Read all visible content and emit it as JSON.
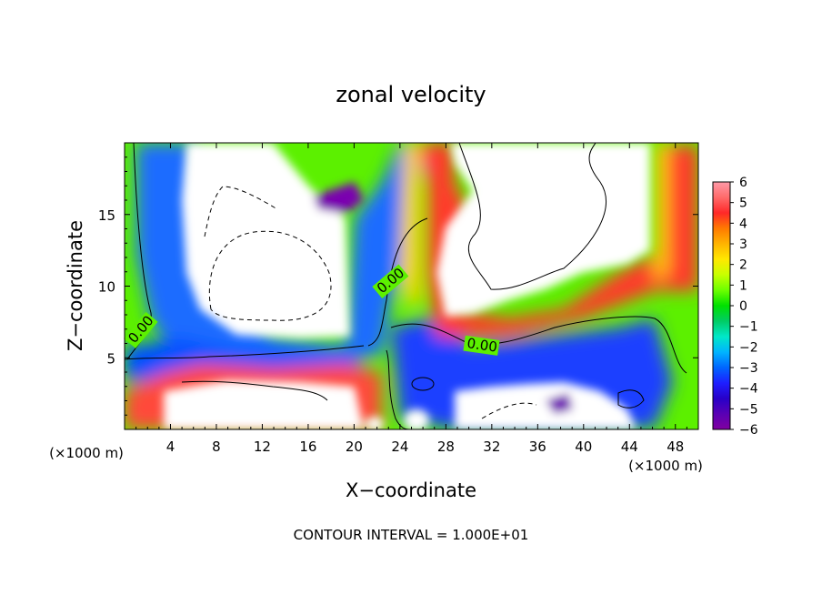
{
  "chart_data": {
    "type": "heatmap",
    "title": "zonal velocity",
    "xlabel": "X−coordinate",
    "ylabel": "Z−coordinate",
    "x_unit": "(×1000 m)",
    "y_unit": "(×1000 m)",
    "footer": "CONTOUR INTERVAL = 1.000E+01",
    "xlim": [
      0,
      50
    ],
    "ylim": [
      0,
      20
    ],
    "x_ticks": [
      4,
      8,
      12,
      16,
      20,
      24,
      28,
      32,
      36,
      40,
      44,
      48
    ],
    "y_ticks": [
      5,
      10,
      15
    ],
    "colorbar": {
      "min": -6,
      "max": 6,
      "labels": [
        "6",
        "5",
        "4",
        "3",
        "2",
        "1",
        "0",
        "−1",
        "−2",
        "−3",
        "−4",
        "−5",
        "−6"
      ],
      "colors": [
        "#ff9aa8",
        "#ff6a6a",
        "#ff2828",
        "#ff7a00",
        "#ffb400",
        "#ffe800",
        "#c8ff00",
        "#6cff00",
        "#00e000",
        "#00cc66",
        "#00e8c8",
        "#00b4ff",
        "#0066ff",
        "#1e1eff",
        "#2800c8",
        "#5a00b4",
        "#8000a0"
      ]
    },
    "contour_labels": [
      "0.00",
      "0.00",
      "0.00"
    ],
    "grid": false
  }
}
